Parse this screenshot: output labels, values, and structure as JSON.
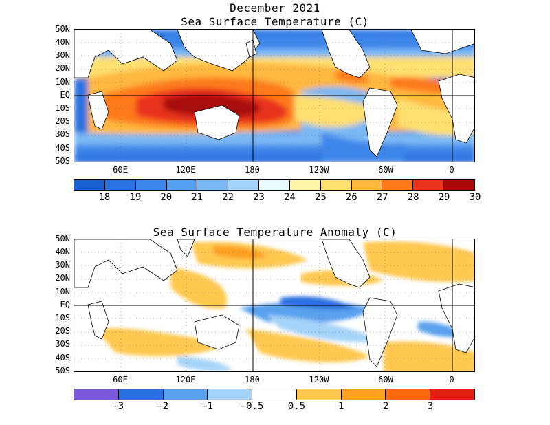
{
  "figure": {
    "title_line1": "December 2021",
    "title_line2": "Sea Surface Temperature (C)",
    "title_anom": "Sea Surface Temperature Anomaly (C)"
  },
  "axes": {
    "lat_labels": [
      "50N",
      "40N",
      "30N",
      "20N",
      "10N",
      "EQ",
      "10S",
      "20S",
      "30S",
      "40S",
      "50S"
    ],
    "lon_labels": [
      "60E",
      "120E",
      "180",
      "120W",
      "60W",
      "0"
    ]
  },
  "sst_colorbar": {
    "colors": [
      "#1a5fd0",
      "#2a72e0",
      "#3d86ea",
      "#55a0f0",
      "#7ab8f4",
      "#a6d4f8",
      "#e8fbff",
      "#fff3a8",
      "#ffe070",
      "#ffb840",
      "#ff7a1a",
      "#e8321a",
      "#a80808"
    ],
    "ticks": [
      "18",
      "19",
      "20",
      "21",
      "22",
      "23",
      "24",
      "25",
      "26",
      "27",
      "28",
      "29",
      "30"
    ]
  },
  "anom_colorbar": {
    "colors": [
      "#7a5ad8",
      "#2a6fe0",
      "#5aa2ee",
      "#a6d4f8",
      "#ffffff",
      "#ffc850",
      "#ffa020",
      "#f86a10",
      "#e02010"
    ],
    "ticks": [
      "−3",
      "−2",
      "−1",
      "−0.5",
      "0.5",
      "1",
      "2",
      "3"
    ]
  }
}
